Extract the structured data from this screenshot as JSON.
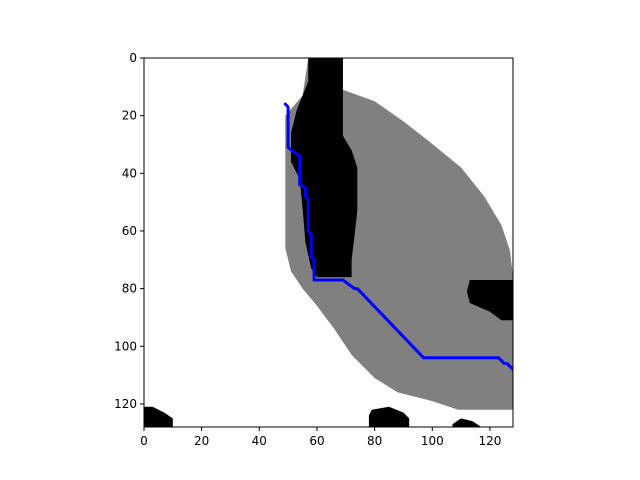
{
  "chart_data": {
    "type": "heatmap",
    "title": "",
    "xlabel": "",
    "ylabel": "",
    "xlim": [
      0,
      128
    ],
    "ylim": [
      128,
      0
    ],
    "y_axis_inverted": true,
    "grid": false,
    "x_ticks": [
      0,
      20,
      40,
      60,
      80,
      100,
      120
    ],
    "y_ticks": [
      0,
      20,
      40,
      60,
      80,
      100,
      120
    ],
    "colors": {
      "free": "#ffffff",
      "obstacle": "#000000",
      "inflated_region": "#808080",
      "path": "#0000ff"
    },
    "inflated_region": [
      [
        57,
        0
      ],
      [
        69,
        0
      ],
      [
        69,
        11
      ],
      [
        80,
        15
      ],
      [
        90,
        22
      ],
      [
        99,
        29
      ],
      [
        110,
        38
      ],
      [
        118,
        48
      ],
      [
        124,
        58
      ],
      [
        127,
        67
      ],
      [
        128,
        76
      ],
      [
        128,
        122
      ],
      [
        109,
        122
      ],
      [
        100,
        119
      ],
      [
        88,
        116
      ],
      [
        80,
        111
      ],
      [
        72,
        103
      ],
      [
        66,
        94
      ],
      [
        60,
        86
      ],
      [
        55,
        80
      ],
      [
        51,
        74
      ],
      [
        49,
        66
      ],
      [
        49,
        20
      ],
      [
        55,
        13
      ]
    ],
    "obstacles": [
      [
        [
          57,
          0
        ],
        [
          69,
          0
        ],
        [
          69,
          27
        ],
        [
          72,
          32
        ],
        [
          74,
          38
        ],
        [
          74,
          53
        ],
        [
          73,
          62
        ],
        [
          72,
          70
        ],
        [
          72,
          76
        ],
        [
          60,
          76
        ],
        [
          58,
          73
        ],
        [
          56,
          64
        ],
        [
          55,
          52
        ],
        [
          54,
          42
        ],
        [
          51,
          36
        ],
        [
          51,
          26
        ],
        [
          53,
          18
        ],
        [
          55,
          13
        ],
        [
          57,
          8
        ]
      ],
      [
        [
          113,
          77
        ],
        [
          128,
          77
        ],
        [
          128,
          91
        ],
        [
          124,
          91
        ],
        [
          120,
          88
        ],
        [
          113,
          85
        ],
        [
          112,
          81
        ]
      ],
      [
        [
          0,
          121
        ],
        [
          3,
          121
        ],
        [
          7,
          123
        ],
        [
          10,
          125
        ],
        [
          10,
          128
        ],
        [
          0,
          128
        ]
      ],
      [
        [
          79,
          122
        ],
        [
          85,
          121
        ],
        [
          90,
          123
        ],
        [
          92,
          125
        ],
        [
          92,
          128
        ],
        [
          78,
          128
        ],
        [
          78,
          124
        ]
      ],
      [
        [
          107,
          127
        ],
        [
          110,
          125
        ],
        [
          114,
          126
        ],
        [
          117,
          128
        ],
        [
          107,
          128
        ]
      ]
    ],
    "path": [
      [
        49,
        16
      ],
      [
        50,
        17
      ],
      [
        50,
        31
      ],
      [
        54,
        34
      ],
      [
        54,
        44
      ],
      [
        56,
        45
      ],
      [
        56,
        48
      ],
      [
        57,
        49
      ],
      [
        57,
        60
      ],
      [
        58,
        61
      ],
      [
        58,
        69
      ],
      [
        59,
        70
      ],
      [
        59,
        77
      ],
      [
        69,
        77
      ],
      [
        73,
        80
      ],
      [
        74,
        80
      ],
      [
        97,
        104
      ],
      [
        123,
        104
      ],
      [
        125,
        106
      ],
      [
        126,
        106
      ],
      [
        128,
        108
      ]
    ]
  }
}
